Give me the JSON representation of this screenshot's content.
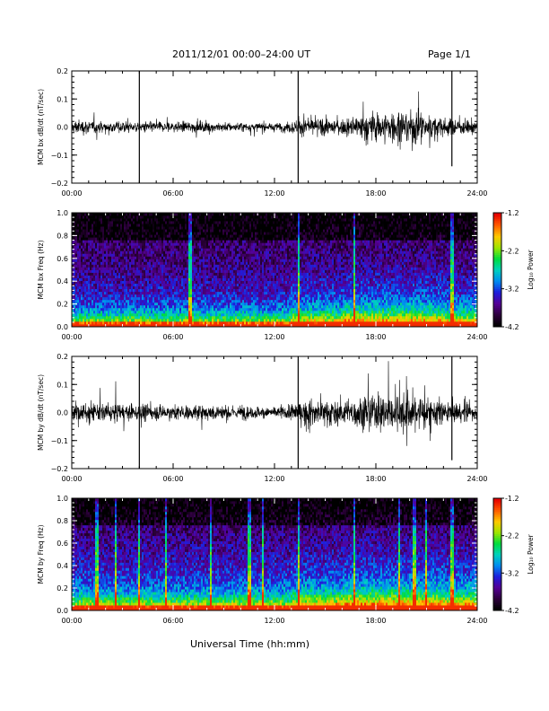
{
  "header": {
    "title": "2011/12/01   00:00–24:00 UT",
    "page": "Page 1/1"
  },
  "footer": {
    "xlabel": "Universal Time (hh:mm)"
  },
  "chart_data": [
    {
      "type": "line",
      "ylabel": "MCM bx dB/dt (nT/sec)",
      "xlim": [
        0,
        24
      ],
      "ylim": [
        -0.2,
        0.2
      ],
      "x_ticks": [
        "00:00",
        "06:00",
        "12:00",
        "18:00",
        "24:00"
      ],
      "y_ticks": [
        "−0.2",
        "−0.1",
        "0.0",
        "0.1",
        "0.2"
      ],
      "envelope": {
        "hours": [
          0,
          2,
          4,
          6,
          8,
          10,
          12,
          14,
          15,
          16,
          17,
          18,
          19,
          20,
          21,
          22,
          23,
          24
        ],
        "amplitude": [
          0.05,
          0.04,
          0.035,
          0.035,
          0.035,
          0.03,
          0.025,
          0.06,
          0.055,
          0.05,
          0.08,
          0.1,
          0.11,
          0.12,
          0.09,
          0.06,
          0.05,
          0.05
        ]
      },
      "spikes": [
        {
          "hour": 4.0,
          "min": -0.2,
          "max": 0.21
        },
        {
          "hour": 13.4,
          "min": -0.21,
          "max": 0.21
        },
        {
          "hour": 22.5,
          "min": -0.14,
          "max": 0.21
        }
      ]
    },
    {
      "type": "heatmap",
      "ylabel": "MCM bx Freq (Hz)",
      "xlim": [
        0,
        24
      ],
      "ylim": [
        0,
        1.0
      ],
      "x_ticks": [
        "00:00",
        "06:00",
        "12:00",
        "18:00",
        "24:00"
      ],
      "y_ticks": [
        "0.0",
        "0.2",
        "0.4",
        "0.6",
        "0.8",
        "1.0"
      ],
      "colorbar": {
        "label": "Log₁₀ Power",
        "ticks": [
          "-1.2",
          "-2.2",
          "-3.2",
          "-4.2"
        ],
        "range": [
          -4.2,
          -1.2
        ]
      },
      "stripe_hours": [
        7.0,
        13.4,
        16.7,
        22.5
      ]
    },
    {
      "type": "line",
      "ylabel": "MCM by dB/dt (nT/sec)",
      "xlim": [
        0,
        24
      ],
      "ylim": [
        -0.2,
        0.2
      ],
      "x_ticks": [
        "00:00",
        "06:00",
        "12:00",
        "18:00",
        "24:00"
      ],
      "y_ticks": [
        "−0.2",
        "−0.1",
        "0.0",
        "0.1",
        "0.2"
      ],
      "envelope": {
        "hours": [
          0,
          2,
          4,
          6,
          8,
          10,
          12,
          14,
          15,
          16,
          17,
          18,
          19,
          20,
          21,
          22,
          23,
          24
        ],
        "amplitude": [
          0.07,
          0.06,
          0.05,
          0.05,
          0.05,
          0.045,
          0.035,
          0.08,
          0.09,
          0.085,
          0.1,
          0.12,
          0.13,
          0.14,
          0.11,
          0.08,
          0.06,
          0.06
        ]
      },
      "spikes": [
        {
          "hour": 4.0,
          "min": -0.2,
          "max": 0.2
        },
        {
          "hour": 13.4,
          "min": -0.21,
          "max": 0.2
        },
        {
          "hour": 22.5,
          "min": -0.17,
          "max": 0.2
        }
      ]
    },
    {
      "type": "heatmap",
      "ylabel": "MCM by Freq (Hz)",
      "xlim": [
        0,
        24
      ],
      "ylim": [
        0,
        1.0
      ],
      "x_ticks": [
        "00:00",
        "06:00",
        "12:00",
        "18:00",
        "24:00"
      ],
      "y_ticks": [
        "0.0",
        "0.2",
        "0.4",
        "0.6",
        "0.8",
        "1.0"
      ],
      "colorbar": {
        "label": "Log₁₀ Power",
        "ticks": [
          "-1.2",
          "-2.2",
          "-3.2",
          "-4.2"
        ],
        "range": [
          -4.2,
          -1.2
        ]
      },
      "stripe_hours": [
        1.5,
        2.6,
        4.0,
        5.6,
        8.2,
        10.5,
        11.3,
        13.4,
        16.7,
        19.4,
        20.3,
        21.0,
        22.5
      ]
    }
  ]
}
